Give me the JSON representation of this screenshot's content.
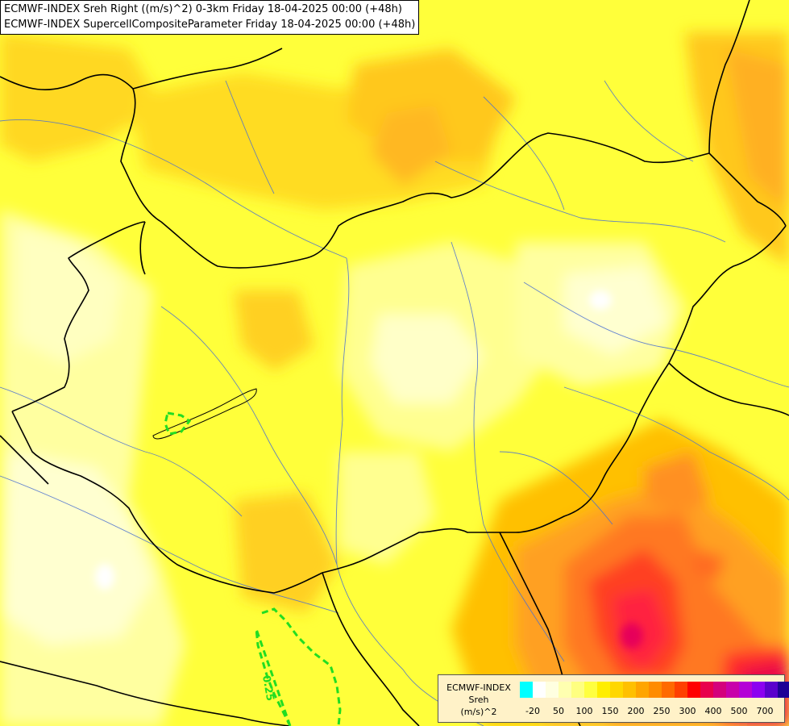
{
  "titles": {
    "line1": "ECMWF-INDEX Sreh Right ((m/s)^2) 0-3km Friday 18-04-2025 00:00 (+48h)",
    "line2": "ECMWF-INDEX SupercellCompositeParameter Friday 18-04-2025 00:00 (+48h)"
  },
  "contour_label": "0.25",
  "legend": {
    "title_line1": "ECMWF-INDEX",
    "title_line2": "Sreh",
    "title_line3": "(m/s)^2",
    "colors": [
      "#00ffff",
      "#ffffff",
      "#ffffe0",
      "#ffffb0",
      "#ffff80",
      "#ffff40",
      "#ffee00",
      "#ffd700",
      "#ffc000",
      "#ffa500",
      "#ff8c00",
      "#ff6a00",
      "#ff4000",
      "#ff0000",
      "#e8004c",
      "#d4007c",
      "#c800aa",
      "#b400d6",
      "#8c00f0",
      "#5a00cc",
      "#1e0096"
    ],
    "ticks": [
      "-20",
      "50",
      "100",
      "150",
      "200",
      "250",
      "300",
      "400",
      "500",
      "700"
    ]
  }
}
